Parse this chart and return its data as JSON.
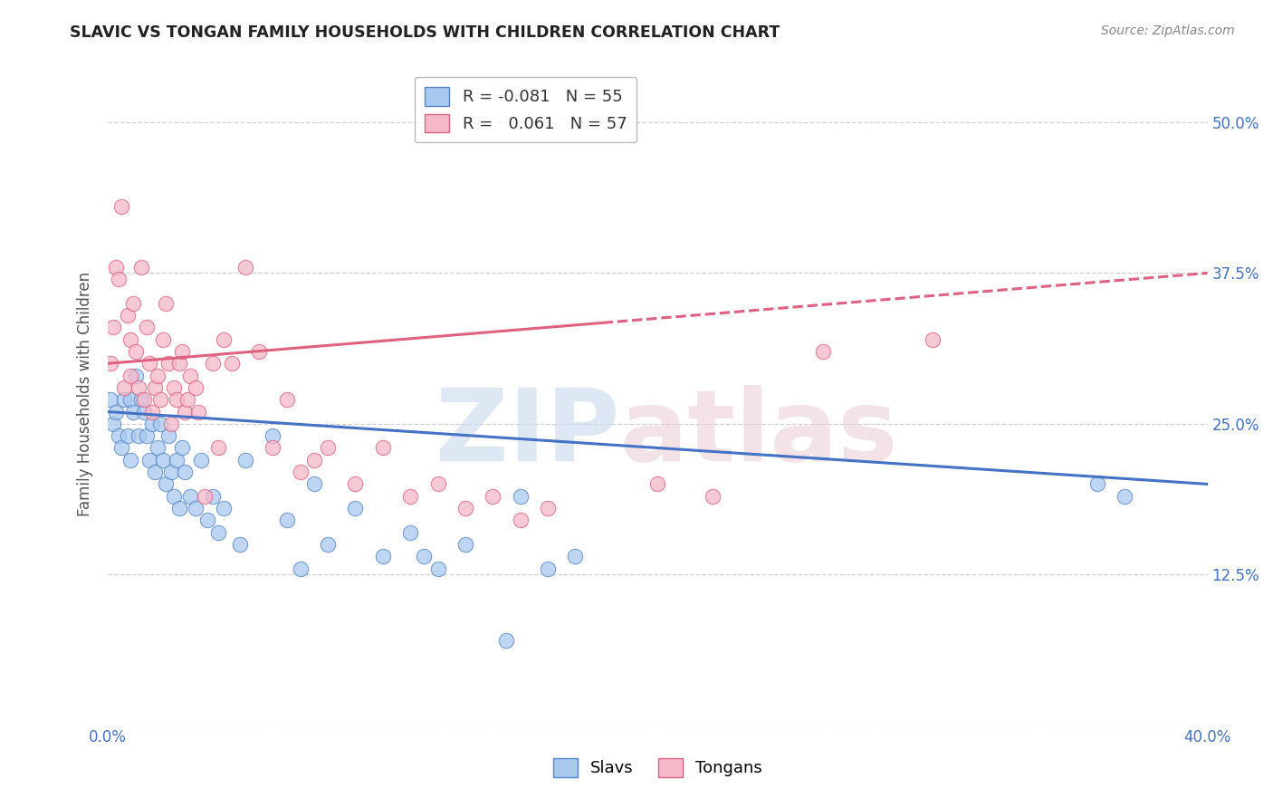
{
  "title": "SLAVIC VS TONGAN FAMILY HOUSEHOLDS WITH CHILDREN CORRELATION CHART",
  "source": "Source: ZipAtlas.com",
  "ylabel_label": "Family Households with Children",
  "x_min": 0.0,
  "x_max": 0.4,
  "y_min": 0.0,
  "y_max": 0.55,
  "x_ticks": [
    0.0,
    0.05,
    0.1,
    0.15,
    0.2,
    0.25,
    0.3,
    0.35,
    0.4
  ],
  "y_ticks": [
    0.0,
    0.125,
    0.25,
    0.375,
    0.5
  ],
  "y_tick_labels_right": [
    "",
    "12.5%",
    "25.0%",
    "37.5%",
    "50.0%"
  ],
  "legend_slavs_R": "-0.081",
  "legend_slavs_N": "55",
  "legend_tongans_R": "0.061",
  "legend_tongans_N": "57",
  "slavic_color": "#a8c8f0",
  "tongan_color": "#f5b8c8",
  "slavic_edge_color": "#5585c5",
  "tongan_edge_color": "#e06080",
  "slavic_line_color": "#4472c4",
  "tongan_line_color": "#e06080",
  "slavic_x": [
    0.001,
    0.002,
    0.003,
    0.004,
    0.005,
    0.006,
    0.007,
    0.008,
    0.008,
    0.009,
    0.01,
    0.011,
    0.012,
    0.013,
    0.014,
    0.015,
    0.016,
    0.017,
    0.018,
    0.019,
    0.02,
    0.021,
    0.022,
    0.023,
    0.024,
    0.025,
    0.026,
    0.027,
    0.028,
    0.03,
    0.032,
    0.034,
    0.036,
    0.038,
    0.04,
    0.042,
    0.048,
    0.05,
    0.06,
    0.065,
    0.07,
    0.075,
    0.08,
    0.09,
    0.1,
    0.11,
    0.115,
    0.12,
    0.13,
    0.145,
    0.15,
    0.16,
    0.17,
    0.36,
    0.37
  ],
  "slavic_y": [
    0.27,
    0.25,
    0.26,
    0.24,
    0.23,
    0.27,
    0.24,
    0.22,
    0.27,
    0.26,
    0.29,
    0.24,
    0.27,
    0.26,
    0.24,
    0.22,
    0.25,
    0.21,
    0.23,
    0.25,
    0.22,
    0.2,
    0.24,
    0.21,
    0.19,
    0.22,
    0.18,
    0.23,
    0.21,
    0.19,
    0.18,
    0.22,
    0.17,
    0.19,
    0.16,
    0.18,
    0.15,
    0.22,
    0.24,
    0.17,
    0.13,
    0.2,
    0.15,
    0.18,
    0.14,
    0.16,
    0.14,
    0.13,
    0.15,
    0.07,
    0.19,
    0.13,
    0.14,
    0.2,
    0.19
  ],
  "tongan_x": [
    0.001,
    0.002,
    0.003,
    0.004,
    0.005,
    0.006,
    0.007,
    0.008,
    0.008,
    0.009,
    0.01,
    0.011,
    0.012,
    0.013,
    0.014,
    0.015,
    0.016,
    0.017,
    0.018,
    0.019,
    0.02,
    0.021,
    0.022,
    0.023,
    0.024,
    0.025,
    0.026,
    0.027,
    0.028,
    0.029,
    0.03,
    0.032,
    0.033,
    0.035,
    0.038,
    0.04,
    0.042,
    0.045,
    0.05,
    0.055,
    0.06,
    0.065,
    0.07,
    0.075,
    0.08,
    0.09,
    0.1,
    0.11,
    0.12,
    0.13,
    0.14,
    0.15,
    0.16,
    0.2,
    0.22,
    0.26,
    0.3
  ],
  "tongan_y": [
    0.3,
    0.33,
    0.38,
    0.37,
    0.43,
    0.28,
    0.34,
    0.32,
    0.29,
    0.35,
    0.31,
    0.28,
    0.38,
    0.27,
    0.33,
    0.3,
    0.26,
    0.28,
    0.29,
    0.27,
    0.32,
    0.35,
    0.3,
    0.25,
    0.28,
    0.27,
    0.3,
    0.31,
    0.26,
    0.27,
    0.29,
    0.28,
    0.26,
    0.19,
    0.3,
    0.23,
    0.32,
    0.3,
    0.38,
    0.31,
    0.23,
    0.27,
    0.21,
    0.22,
    0.23,
    0.2,
    0.23,
    0.19,
    0.2,
    0.18,
    0.19,
    0.17,
    0.18,
    0.2,
    0.19,
    0.31,
    0.32
  ],
  "slavic_trend_x0": 0.0,
  "slavic_trend_x1": 0.4,
  "slavic_trend_y0": 0.26,
  "slavic_trend_y1": 0.2,
  "tongan_trend_x0": 0.0,
  "tongan_trend_x1": 0.4,
  "tongan_trend_y0": 0.3,
  "tongan_trend_y1": 0.375
}
